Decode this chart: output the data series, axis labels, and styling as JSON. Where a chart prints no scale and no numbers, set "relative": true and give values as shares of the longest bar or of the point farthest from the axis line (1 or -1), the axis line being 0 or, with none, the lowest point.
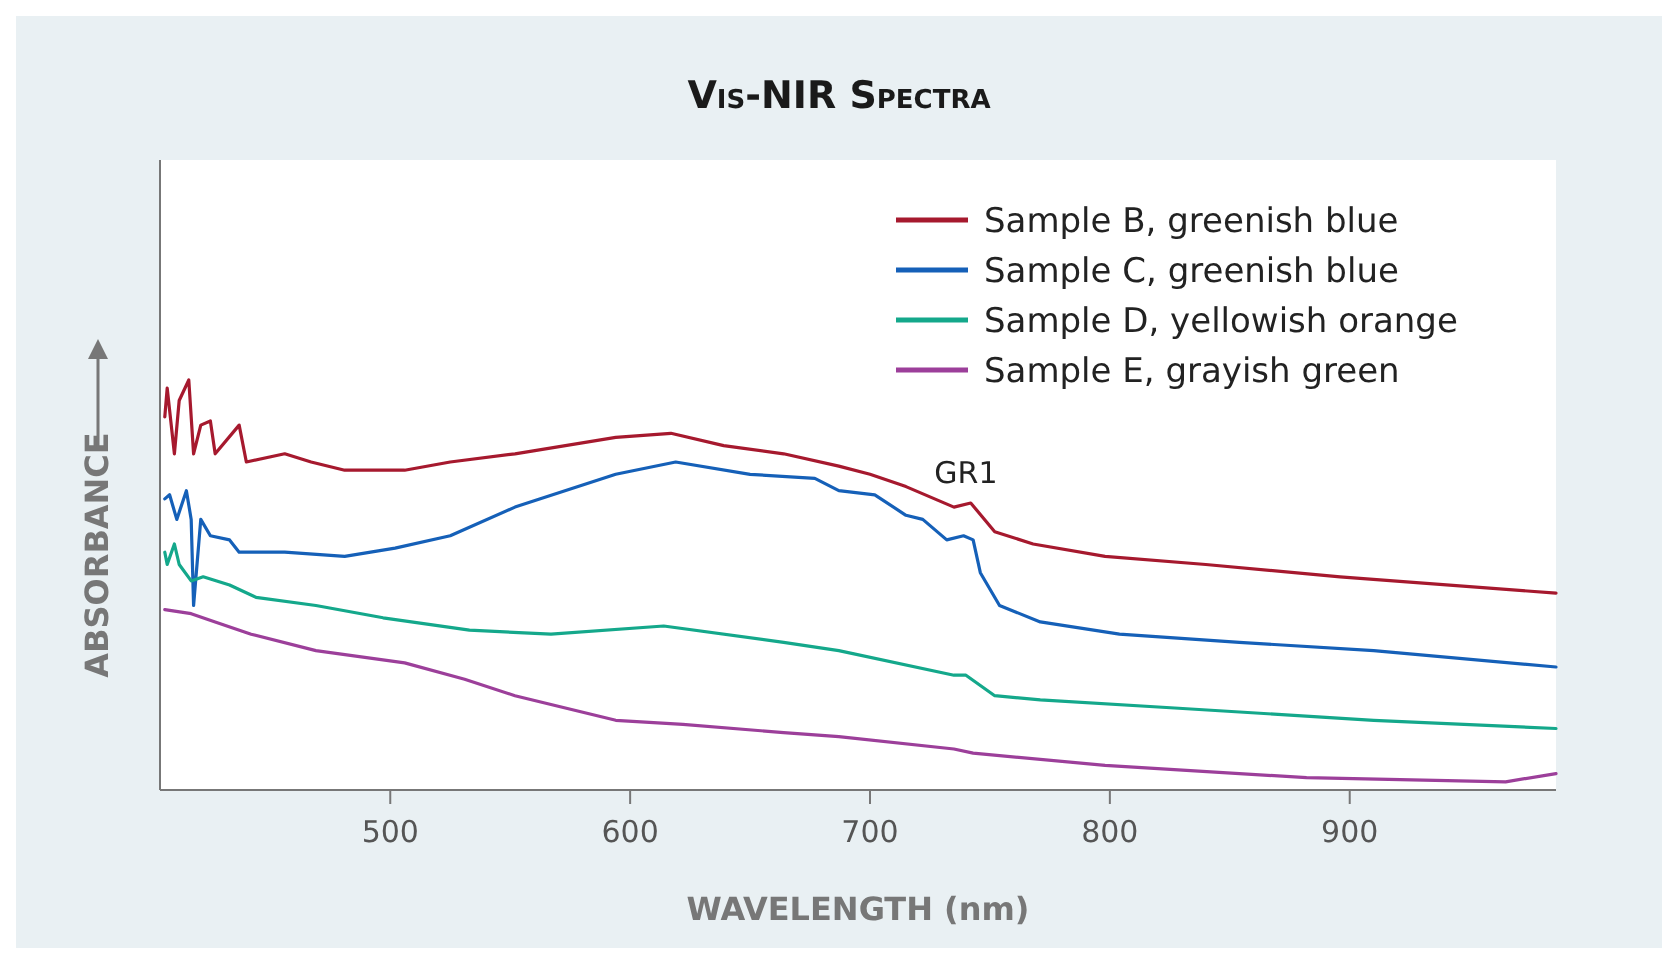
{
  "chart_data": {
    "type": "line",
    "title": "Vis-NIR Spectra",
    "xlabel": "WAVELENGTH (nm)",
    "ylabel": "ABSORBANCE",
    "relative": true,
    "xlim": [
      404,
      986
    ],
    "xticks": [
      500,
      600,
      700,
      800,
      900
    ],
    "legend": "top right",
    "annotations": [
      {
        "text": "GR1",
        "x": 740,
        "y": 0.7
      }
    ],
    "series": [
      {
        "name": "Sample B, greenish blue",
        "color": "#a6192e",
        "x": [
          406,
          407,
          410,
          412,
          416,
          418,
          421,
          425,
          427,
          437,
          440,
          456,
          467,
          481,
          506,
          525,
          552,
          594,
          617,
          639,
          664,
          687,
          700,
          715,
          735,
          742,
          752,
          768,
          798,
          840,
          896,
          986
        ],
        "values": [
          0.91,
          0.98,
          0.82,
          0.95,
          1,
          0.82,
          0.89,
          0.9,
          0.82,
          0.89,
          0.8,
          0.82,
          0.8,
          0.78,
          0.78,
          0.8,
          0.82,
          0.86,
          0.87,
          0.84,
          0.82,
          0.79,
          0.77,
          0.74,
          0.69,
          0.7,
          0.63,
          0.6,
          0.57,
          0.55,
          0.52,
          0.48
        ]
      },
      {
        "name": "Sample C, greenish blue",
        "color": "#1560b8",
        "x": [
          406,
          408,
          411,
          415,
          417,
          418,
          421,
          425,
          433,
          437,
          456,
          481,
          502,
          525,
          552,
          594,
          619,
          650,
          677,
          687,
          702,
          715,
          722,
          732,
          739,
          743,
          746,
          754,
          771,
          804,
          854,
          910,
          986
        ],
        "values": [
          0.71,
          0.72,
          0.66,
          0.73,
          0.66,
          0.45,
          0.66,
          0.62,
          0.61,
          0.58,
          0.58,
          0.57,
          0.59,
          0.62,
          0.69,
          0.77,
          0.8,
          0.77,
          0.76,
          0.73,
          0.72,
          0.67,
          0.66,
          0.61,
          0.62,
          0.61,
          0.53,
          0.45,
          0.41,
          0.38,
          0.36,
          0.34,
          0.3
        ]
      },
      {
        "name": "Sample D, yellowish orange",
        "color": "#14a88b",
        "x": [
          406,
          407,
          410,
          412,
          417,
          422,
          433,
          444,
          469,
          497,
          533,
          567,
          614,
          664,
          687,
          735,
          740,
          752,
          771,
          827,
          910,
          986
        ],
        "values": [
          0.58,
          0.55,
          0.6,
          0.55,
          0.51,
          0.52,
          0.5,
          0.47,
          0.45,
          0.42,
          0.39,
          0.38,
          0.4,
          0.36,
          0.34,
          0.28,
          0.28,
          0.23,
          0.22,
          0.2,
          0.17,
          0.15
        ]
      },
      {
        "name": "Sample E, grayish green",
        "color": "#9c3f9a",
        "x": [
          406,
          417,
          427,
          442,
          469,
          506,
          531,
          552,
          594,
          622,
          664,
          687,
          735,
          743,
          798,
          882,
          965,
          986
        ],
        "values": [
          0.44,
          0.43,
          0.41,
          0.38,
          0.34,
          0.31,
          0.27,
          0.23,
          0.17,
          0.16,
          0.14,
          0.13,
          0.1,
          0.09,
          0.06,
          0.03,
          0.02,
          0.04
        ]
      }
    ]
  }
}
